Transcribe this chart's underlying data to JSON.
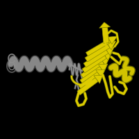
{
  "background_color": "#000000",
  "figsize": [
    2.0,
    2.0
  ],
  "dpi": 100,
  "gray_color": "#909090",
  "gray_dark": "#505050",
  "yellow_color": "#DDCC00",
  "yellow_dark": "#888800",
  "yellow_light": "#FFEE00"
}
